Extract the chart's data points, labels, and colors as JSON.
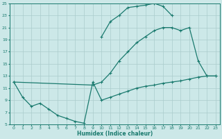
{
  "xlabel": "Humidex (Indice chaleur)",
  "background_color": "#cce8e8",
  "grid_color": "#aacccc",
  "line_color": "#1a7a6e",
  "xlim": [
    -0.5,
    23.5
  ],
  "ylim": [
    5,
    25
  ],
  "xticks": [
    0,
    1,
    2,
    3,
    4,
    5,
    6,
    7,
    8,
    9,
    10,
    11,
    12,
    13,
    14,
    15,
    16,
    17,
    18,
    19,
    20,
    21,
    22,
    23
  ],
  "yticks": [
    5,
    7,
    9,
    11,
    13,
    15,
    17,
    19,
    21,
    23,
    25
  ],
  "curve_top": {
    "x": [
      10,
      11,
      12,
      13,
      14,
      15,
      16,
      17,
      18
    ],
    "y": [
      19.5,
      22.0,
      23.0,
      24.3,
      24.5,
      24.7,
      25.0,
      24.5,
      23.0
    ]
  },
  "curve_mid": {
    "x": [
      0,
      9,
      10,
      11,
      12,
      13,
      14,
      15,
      16,
      17,
      18,
      19,
      20,
      21,
      22,
      23
    ],
    "y": [
      12,
      11.5,
      12.0,
      13.5,
      15.5,
      17.0,
      18.5,
      19.5,
      20.5,
      21.0,
      21.0,
      20.5,
      21.0,
      15.5,
      13.0,
      13.0
    ]
  },
  "curve_bot": {
    "x": [
      0,
      1,
      2,
      3,
      4,
      5,
      6,
      7,
      8,
      9,
      10,
      11,
      12,
      13,
      14,
      15,
      16,
      17,
      18,
      19,
      20,
      21,
      22,
      23
    ],
    "y": [
      12,
      9.5,
      8.0,
      8.5,
      7.5,
      6.5,
      6.0,
      5.5,
      5.2,
      12.0,
      9.0,
      9.5,
      10.0,
      10.5,
      11.0,
      11.3,
      11.5,
      11.8,
      12.0,
      12.2,
      12.5,
      12.8,
      13.0,
      13.0
    ]
  },
  "marker": "+"
}
